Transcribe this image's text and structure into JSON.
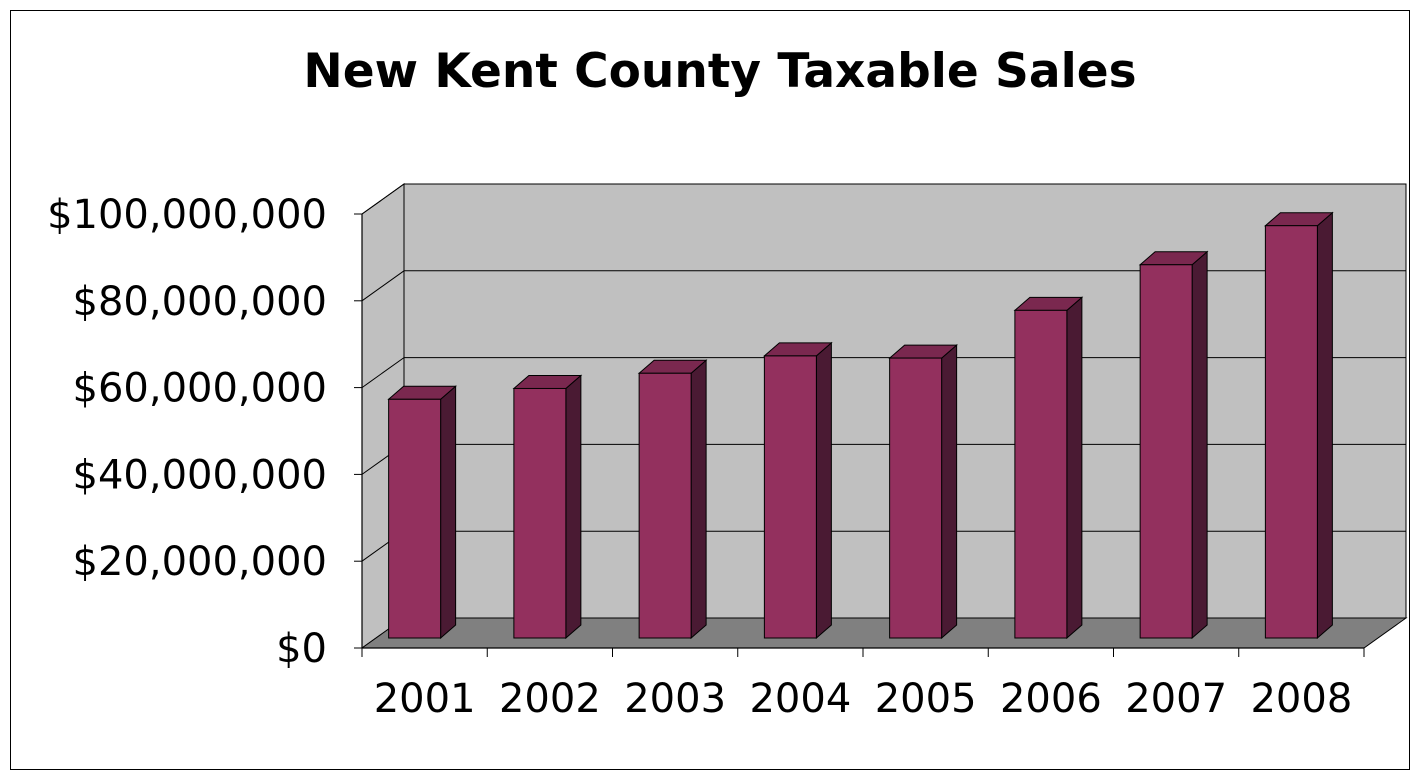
{
  "chart_data": {
    "type": "bar",
    "title": "New Kent County Taxable Sales",
    "categories": [
      "2001",
      "2002",
      "2003",
      "2004",
      "2005",
      "2006",
      "2007",
      "2008"
    ],
    "series": [
      {
        "values": [
          55000000,
          57500000,
          61000000,
          65000000,
          64500000,
          75500000,
          86000000,
          95000000
        ]
      }
    ],
    "ylim": [
      0,
      100000000
    ],
    "yticks": [
      0,
      20000000,
      40000000,
      60000000,
      80000000,
      100000000
    ],
    "ytick_labels": [
      "$0",
      "$20,000,000",
      "$40,000,000",
      "$60,000,000",
      "$80,000,000",
      "$100,000,000"
    ],
    "xlabel": "",
    "ylabel": "",
    "grid": true,
    "legend": "none",
    "style": "3d-column",
    "colors": {
      "bar_front": "#93305E",
      "bar_side": "#4A1A33",
      "bar_top": "#7A284F",
      "wall": "#C0C0C0",
      "floor": "#808080"
    }
  }
}
